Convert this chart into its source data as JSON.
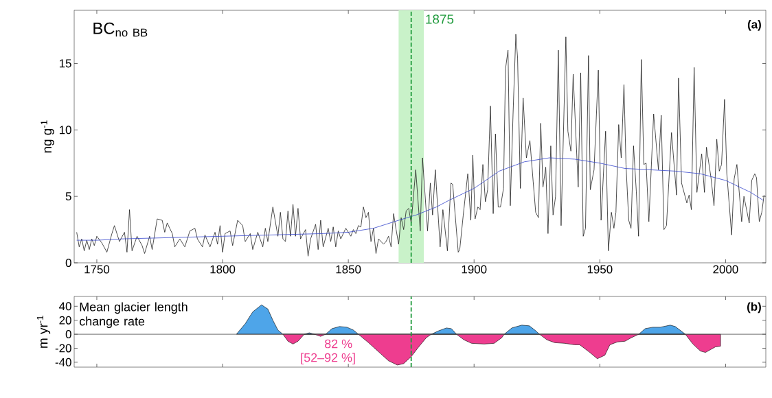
{
  "chart_data": [
    {
      "type": "line",
      "ylabel": "ng g$^{-1}$",
      "xlim": [
        1741,
        2016
      ],
      "ylim": [
        0,
        19
      ],
      "xticks": [
        1750,
        1800,
        1850,
        1900,
        1950,
        2000
      ],
      "yticks": [
        0,
        5,
        10,
        15
      ],
      "annotations": [
        "\\mathrm{BC}_{\\mathrm{no\\ BB}}",
        "(a)"
      ],
      "bands": [
        {
          "axis": "x",
          "from": 1870,
          "to": 1880,
          "color": "#c9f2c9"
        }
      ],
      "ref_lines": [
        {
          "axis": "x",
          "value": 1875,
          "label": "1875",
          "color": "#1f9a3c",
          "line_style": "dashed"
        }
      ],
      "series": [
        {
          "color": "#222222",
          "x": [
            1742,
            1743,
            1744,
            1745,
            1746,
            1747,
            1748,
            1749,
            1750,
            1752,
            1754,
            1756,
            1757,
            1759,
            1761,
            1762,
            1763,
            1764,
            1766,
            1768,
            1769,
            1771,
            1772,
            1774,
            1776,
            1777,
            1778,
            1780,
            1781,
            1783,
            1785,
            1787,
            1789,
            1790,
            1792,
            1793,
            1795,
            1797,
            1798,
            1799,
            1800,
            1801,
            1803,
            1804,
            1806,
            1808,
            1809,
            1811,
            1812,
            1814,
            1816,
            1817,
            1818,
            1820,
            1822,
            1823,
            1824,
            1825,
            1826,
            1827,
            1828,
            1829,
            1830,
            1831,
            1833,
            1834,
            1835,
            1837,
            1838,
            1839,
            1840,
            1842,
            1843,
            1844,
            1845,
            1846,
            1847,
            1849,
            1851,
            1852,
            1853,
            1854,
            1855,
            1856,
            1857,
            1858,
            1859,
            1860,
            1861,
            1862,
            1864,
            1865,
            1866,
            1867,
            1868,
            1869,
            1870,
            1871,
            1872,
            1873,
            1874,
            1875,
            1876.8,
            1878.6,
            1879.5,
            1881.5,
            1882.6,
            1883.5,
            1884.6,
            1886.5,
            1887.6,
            1889.4,
            1890.8,
            1891.5,
            1893.7,
            1894.3,
            1895.7,
            1897.5,
            1898.7,
            1899.5,
            1900.4,
            1901.5,
            1902.4,
            1903.5,
            1904.5,
            1905.4,
            1906.5,
            1907.6,
            1908.5,
            1909.6,
            1910.5,
            1911.7,
            1912.5,
            1913.5,
            1914.4,
            1915.5,
            1916.6,
            1917.3,
            1918.4,
            1919.5,
            1920.8,
            1922.2,
            1923.5,
            1924.5,
            1925.6,
            1926.5,
            1927.4,
            1928.5,
            1929.4,
            1930.5,
            1931.4,
            1932.4,
            1933.5,
            1934.6,
            1936.5,
            1937.3,
            1938.5,
            1939.4,
            1941.4,
            1942.4,
            1943.4,
            1944.3,
            1945.5,
            1946.2,
            1947.7,
            1949.4,
            1950.5,
            1952.3,
            1953.4,
            1954.6,
            1955.6,
            1956.4,
            1957.5,
            1958.5,
            1959.6,
            1960.4,
            1961.5,
            1962.4,
            1963.4,
            1964.5,
            1965.4,
            1966.5,
            1967.5,
            1968.4,
            1969.5,
            1971.4,
            1973.3,
            1974.4,
            1975.5,
            1976.5,
            1978.5,
            1980.5,
            1981.3,
            1982.5,
            1984.6,
            1985.5,
            1986.4,
            1987.5,
            1988.6,
            1990.5,
            1991.6,
            1992.4,
            1994.2,
            1995.4,
            1996.5,
            1997.5,
            1998.4,
            1999.6,
            2000.5,
            2002.4,
            2003.4,
            2004.5,
            2006.4,
            2007.3,
            2009.4,
            2010.4,
            2011.6,
            2012.3,
            2013.4,
            2014.4,
            2015.3
          ],
          "values": [
            2.3,
            1.2,
            1.8,
            0.9,
            1.7,
            1.0,
            1.8,
            1.3,
            2.0,
            1.5,
            0.8,
            2.2,
            2.8,
            1.6,
            2.3,
            0.8,
            4.0,
            0.9,
            2.0,
            1.3,
            0.7,
            2.0,
            1.0,
            3.3,
            3.2,
            2.3,
            3.0,
            2.2,
            1.2,
            1.8,
            1.2,
            2.4,
            2.6,
            1.8,
            1.2,
            2.1,
            1.2,
            2.3,
            1.4,
            2.8,
            0.8,
            2.2,
            2.4,
            1.3,
            3.2,
            2.8,
            1.6,
            2.2,
            1.0,
            2.3,
            1.2,
            2.6,
            1.6,
            4.2,
            2.0,
            3.8,
            1.8,
            1.6,
            3.9,
            2.0,
            4.4,
            2.0,
            4.1,
            1.8,
            2.5,
            0.5,
            1.8,
            2.9,
            1.0,
            3.2,
            1.2,
            2.6,
            1.6,
            2.7,
            1.2,
            2.4,
            1.8,
            2.6,
            2.0,
            2.5,
            2.2,
            2.8,
            2.7,
            4.2,
            3.4,
            3.8,
            1.6,
            2.6,
            0.7,
            1.8,
            1.4,
            1.6,
            2.0,
            1.2,
            3.7,
            2.5,
            1.4,
            3.4,
            2.5,
            3.9,
            4.1,
            3.0,
            7.0,
            2.4,
            7.9,
            2.4,
            6.0,
            3.6,
            7.0,
            1.2,
            4.0,
            0.9,
            6.0,
            5.9,
            0.8,
            1.0,
            3.6,
            6.7,
            3.2,
            8.1,
            3.3,
            4.2,
            4.0,
            7.4,
            4.6,
            5.5,
            11.8,
            3.7,
            9.7,
            4.2,
            4.2,
            5.6,
            14.6,
            16.0,
            4.3,
            11.2,
            17.2,
            15.4,
            5.6,
            12.4,
            7.9,
            9.2,
            6.1,
            3.8,
            3.4,
            10.5,
            5.7,
            7.2,
            2.2,
            8.8,
            3.6,
            5.0,
            16.0,
            2.8,
            17.0,
            9.9,
            8.4,
            14.2,
            5.7,
            14.3,
            2.0,
            2.6,
            15.6,
            5.5,
            7.0,
            14.5,
            3.2,
            9.9,
            0.9,
            3.8,
            2.6,
            3.8,
            10.4,
            7.9,
            13.4,
            7.4,
            3.2,
            2.6,
            8.8,
            5.4,
            2.0,
            15.3,
            7.4,
            7.5,
            3.1,
            11.2,
            7.0,
            11.1,
            2.5,
            2.8,
            9.8,
            5.1,
            13.9,
            6.0,
            4.5,
            5.1,
            4.0,
            14.7,
            5.3,
            8.2,
            5.3,
            8.7,
            6.4,
            4.3,
            9.3,
            6.9,
            7.4,
            12.3,
            6.7,
            2.1,
            6.3,
            7.4,
            3.1,
            5.0,
            3.0,
            6.2,
            6.7,
            6.4,
            3.1,
            3.8,
            5.1
          ]
        },
        {
          "color": "#3344cc",
          "x": [
            1742,
            1750,
            1760,
            1780,
            1800,
            1820,
            1840,
            1850,
            1860,
            1870,
            1877,
            1885,
            1890,
            1900,
            1910,
            1920,
            1930,
            1940,
            1950,
            1960,
            1970,
            1980,
            1990,
            2000,
            2010,
            2015
          ],
          "values": [
            1.7,
            1.7,
            1.8,
            1.9,
            2.0,
            2.1,
            2.2,
            2.3,
            2.6,
            3.2,
            3.6,
            4.2,
            4.7,
            5.6,
            6.9,
            7.6,
            7.9,
            7.8,
            7.5,
            7.1,
            7.0,
            6.9,
            6.7,
            6.2,
            5.3,
            4.7
          ]
        }
      ]
    },
    {
      "type": "area",
      "ylabel": "m yr$^{-1}$",
      "xlim": [
        1741,
        2016
      ],
      "ylim": [
        -47,
        54
      ],
      "xticks": [
        1750,
        1800,
        1850,
        1900,
        1950,
        2000
      ],
      "yticks": [
        -40,
        -20,
        0,
        20,
        40
      ],
      "tick_labels": "y",
      "annotations": [
        "Mean glacier length change rate",
        "82 %",
        "[52–92 %]",
        "(b)"
      ],
      "ref_lines": [
        {
          "axis": "y",
          "value": 0,
          "color": "#555555",
          "line_style": "solid"
        },
        {
          "axis": "x",
          "value": 1875,
          "color": "#1f9a3c",
          "line_style": "dashed"
        }
      ],
      "series": [
        {
          "color": "#4ea5e9",
          "x": [
            1805.5,
            1809,
            1812,
            1815.5,
            1818,
            1820,
            1822,
            1824,
            1828,
            1832.5,
            1834.5,
            1836.5,
            1839,
            1841,
            1843.5,
            1846.5,
            1849.5,
            1852,
            1854,
            1869.5,
            1883,
            1886,
            1889,
            1891,
            1893,
            1904,
            1912,
            1915,
            1919,
            1922,
            1924.5,
            1926,
            1945,
            1965.5,
            1968,
            1971,
            1974,
            1978,
            1980,
            1984
          ],
          "values": [
            0,
            15,
            32,
            42,
            36,
            20,
            6,
            0,
            null,
            0,
            2,
            0,
            null,
            0,
            8,
            11,
            10,
            6,
            0,
            null,
            0,
            5,
            9,
            8,
            0,
            null,
            0,
            9,
            13,
            12,
            5,
            0,
            null,
            0,
            8,
            10,
            10,
            13,
            11,
            0
          ]
        },
        {
          "color": "#ee3d8f",
          "x": [
            1824,
            1826,
            1828,
            1830,
            1832.5,
            1834.5,
            1836.5,
            1839,
            1841,
            1846,
            1854,
            1858,
            1862,
            1866,
            1869.5,
            1872,
            1875,
            1878,
            1881,
            1883,
            1889,
            1893,
            1896,
            1899,
            1904,
            1908,
            1911,
            1912,
            1919,
            1926,
            1929,
            1932,
            1936,
            1940,
            1942,
            1946,
            1949,
            1952,
            1954,
            1957,
            1960,
            1962.5,
            1965.5,
            1974,
            1984,
            1987,
            1990,
            1992,
            1994,
            1996,
            1998
          ],
          "values": [
            0,
            -10,
            -14,
            -10,
            0,
            null,
            0,
            -3,
            0,
            null,
            0,
            -12,
            -25,
            -38,
            -44,
            -42,
            -32,
            -18,
            -5,
            0,
            null,
            0,
            -8,
            -13,
            -14,
            -13,
            -5,
            0,
            null,
            0,
            -8,
            -12,
            -13,
            -15,
            -15,
            -26,
            -35,
            -30,
            -15,
            -11,
            -10,
            -5,
            0,
            null,
            0,
            -14,
            -24,
            -26,
            -22,
            -18,
            -17
          ]
        }
      ]
    }
  ]
}
